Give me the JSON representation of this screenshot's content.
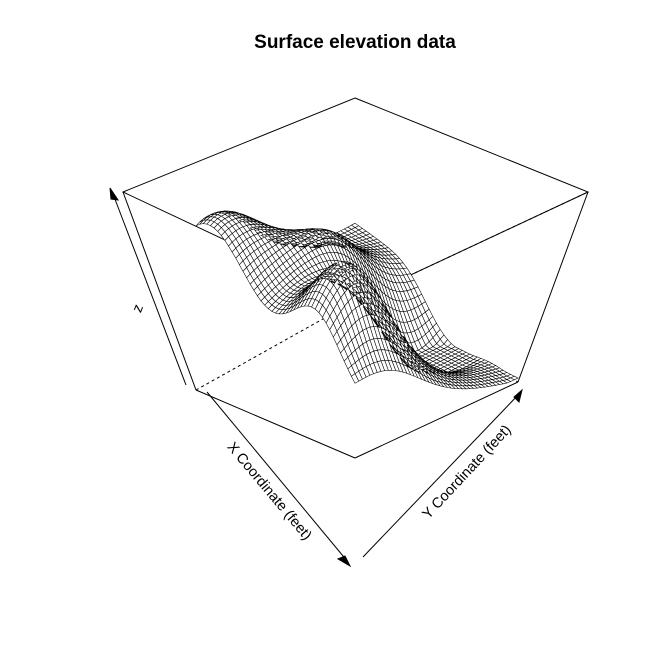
{
  "chart_data": {
    "type": "surface",
    "title": "Surface elevation data",
    "xlabel": "X Coordinate (feet)",
    "ylabel": "Y Coordinate (feet)",
    "zlabel": "z",
    "style": "wireframe",
    "box": true,
    "line_color": "#000000",
    "background": "#ffffff"
  }
}
